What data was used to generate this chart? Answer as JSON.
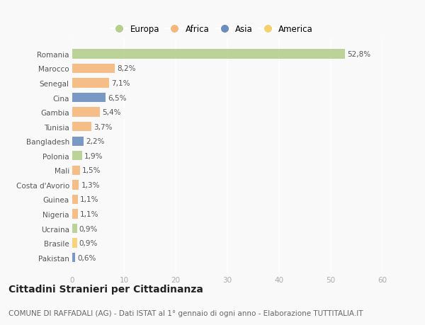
{
  "categories": [
    "Romania",
    "Marocco",
    "Senegal",
    "Cina",
    "Gambia",
    "Tunisia",
    "Bangladesh",
    "Polonia",
    "Mali",
    "Costa d'Avorio",
    "Guinea",
    "Nigeria",
    "Ucraina",
    "Brasile",
    "Pakistan"
  ],
  "values": [
    52.8,
    8.2,
    7.1,
    6.5,
    5.4,
    3.7,
    2.2,
    1.9,
    1.5,
    1.3,
    1.1,
    1.1,
    0.9,
    0.9,
    0.6
  ],
  "labels": [
    "52,8%",
    "8,2%",
    "7,1%",
    "6,5%",
    "5,4%",
    "3,7%",
    "2,2%",
    "1,9%",
    "1,5%",
    "1,3%",
    "1,1%",
    "1,1%",
    "0,9%",
    "0,9%",
    "0,6%"
  ],
  "bar_colors": [
    "#b5cf8f",
    "#f5b87c",
    "#f5b87c",
    "#6b8ebf",
    "#f5b87c",
    "#f5b87c",
    "#6b8ebf",
    "#b5cf8f",
    "#f5b87c",
    "#f5b87c",
    "#f5b87c",
    "#f5b87c",
    "#b5cf8f",
    "#f5d070",
    "#6b8ebf"
  ],
  "continent_colors": {
    "Europa": "#b5cf8f",
    "Africa": "#f5b87c",
    "Asia": "#6b8ebf",
    "America": "#f5d070"
  },
  "legend_order": [
    "Europa",
    "Africa",
    "Asia",
    "America"
  ],
  "xlim": [
    0,
    60
  ],
  "xticks": [
    0,
    10,
    20,
    30,
    40,
    50,
    60
  ],
  "title": "Cittadini Stranieri per Cittadinanza",
  "subtitle": "COMUNE DI RAFFADALI (AG) - Dati ISTAT al 1° gennaio di ogni anno - Elaborazione TUTTITALIA.IT",
  "background_color": "#f9f9f9",
  "grid_color": "#ffffff",
  "bar_height": 0.65,
  "title_fontsize": 10,
  "subtitle_fontsize": 7.5,
  "label_fontsize": 7.5,
  "tick_fontsize": 7.5,
  "legend_fontsize": 8.5
}
